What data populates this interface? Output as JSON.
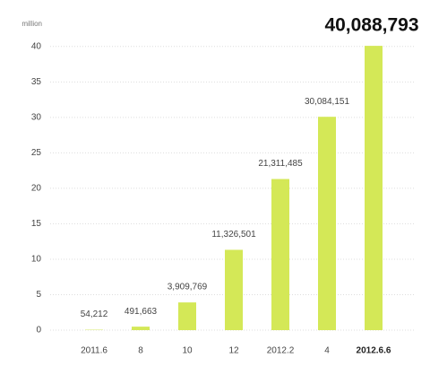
{
  "chart_data": {
    "type": "bar",
    "y_label": "million",
    "categories": [
      "2011.6",
      "8",
      "10",
      "12",
      "2012.2",
      "4",
      "2012.6.6"
    ],
    "values": [
      0.054212,
      0.491663,
      3.909769,
      11.326501,
      21.311485,
      30.084151,
      40.088793
    ],
    "value_labels": [
      "54,212",
      "491,663",
      "3,909,769",
      "11,326,501",
      "21,311,485",
      "30,084,151",
      "40,088,793"
    ],
    "color": "#d4e857",
    "ylim": [
      0,
      42
    ],
    "yticks": [
      0,
      5,
      10,
      15,
      20,
      25,
      30,
      35,
      40
    ],
    "grid": true
  }
}
